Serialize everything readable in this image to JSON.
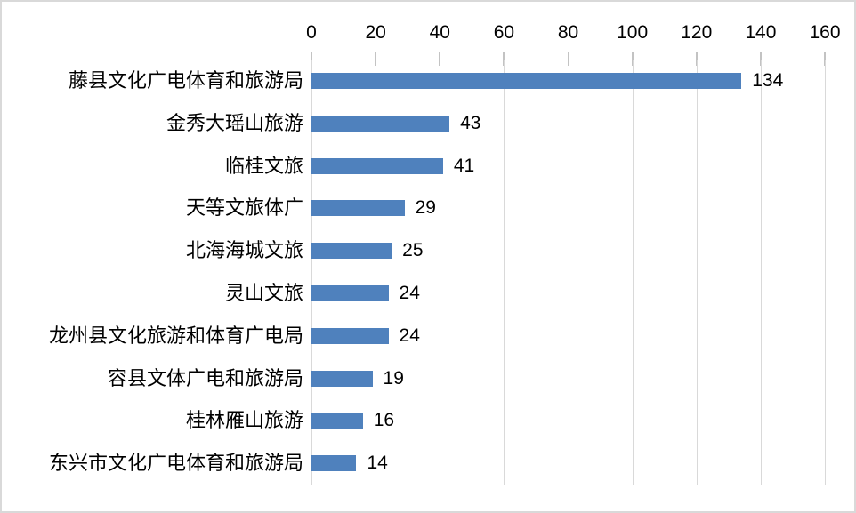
{
  "chart_data": {
    "type": "bar",
    "orientation": "horizontal",
    "title": "",
    "xlabel": "",
    "ylabel": "",
    "categories": [
      "藤县文化广电体育和旅游局",
      "金秀大瑶山旅游",
      "临桂文旅",
      "天等文旅体广",
      "北海海城文旅",
      "灵山文旅",
      "龙州县文化旅游和体育广电局",
      "容县文体广电和旅游局",
      "桂林雁山旅游",
      "东兴市文化广电体育和旅游局"
    ],
    "values": [
      134,
      43,
      41,
      29,
      25,
      24,
      24,
      19,
      16,
      14
    ],
    "data_labels": [
      "134",
      "43",
      "41",
      "29",
      "25",
      "24",
      "24",
      "19",
      "16",
      "14"
    ],
    "xlim": [
      0,
      160
    ],
    "x_ticks": [
      0,
      20,
      40,
      60,
      80,
      100,
      120,
      140,
      160
    ],
    "x_tick_labels": [
      "0",
      "20",
      "40",
      "60",
      "80",
      "100",
      "120",
      "140",
      "160"
    ],
    "axis_position": "top",
    "grid": true,
    "legend_position": "none",
    "colors": {
      "bar": "#4f81bd",
      "gridline": "#d9d9d9",
      "tick_mark": "#c3c3c3",
      "text": "#000000",
      "background": "#ffffff",
      "border": "#d9d9d9"
    }
  }
}
